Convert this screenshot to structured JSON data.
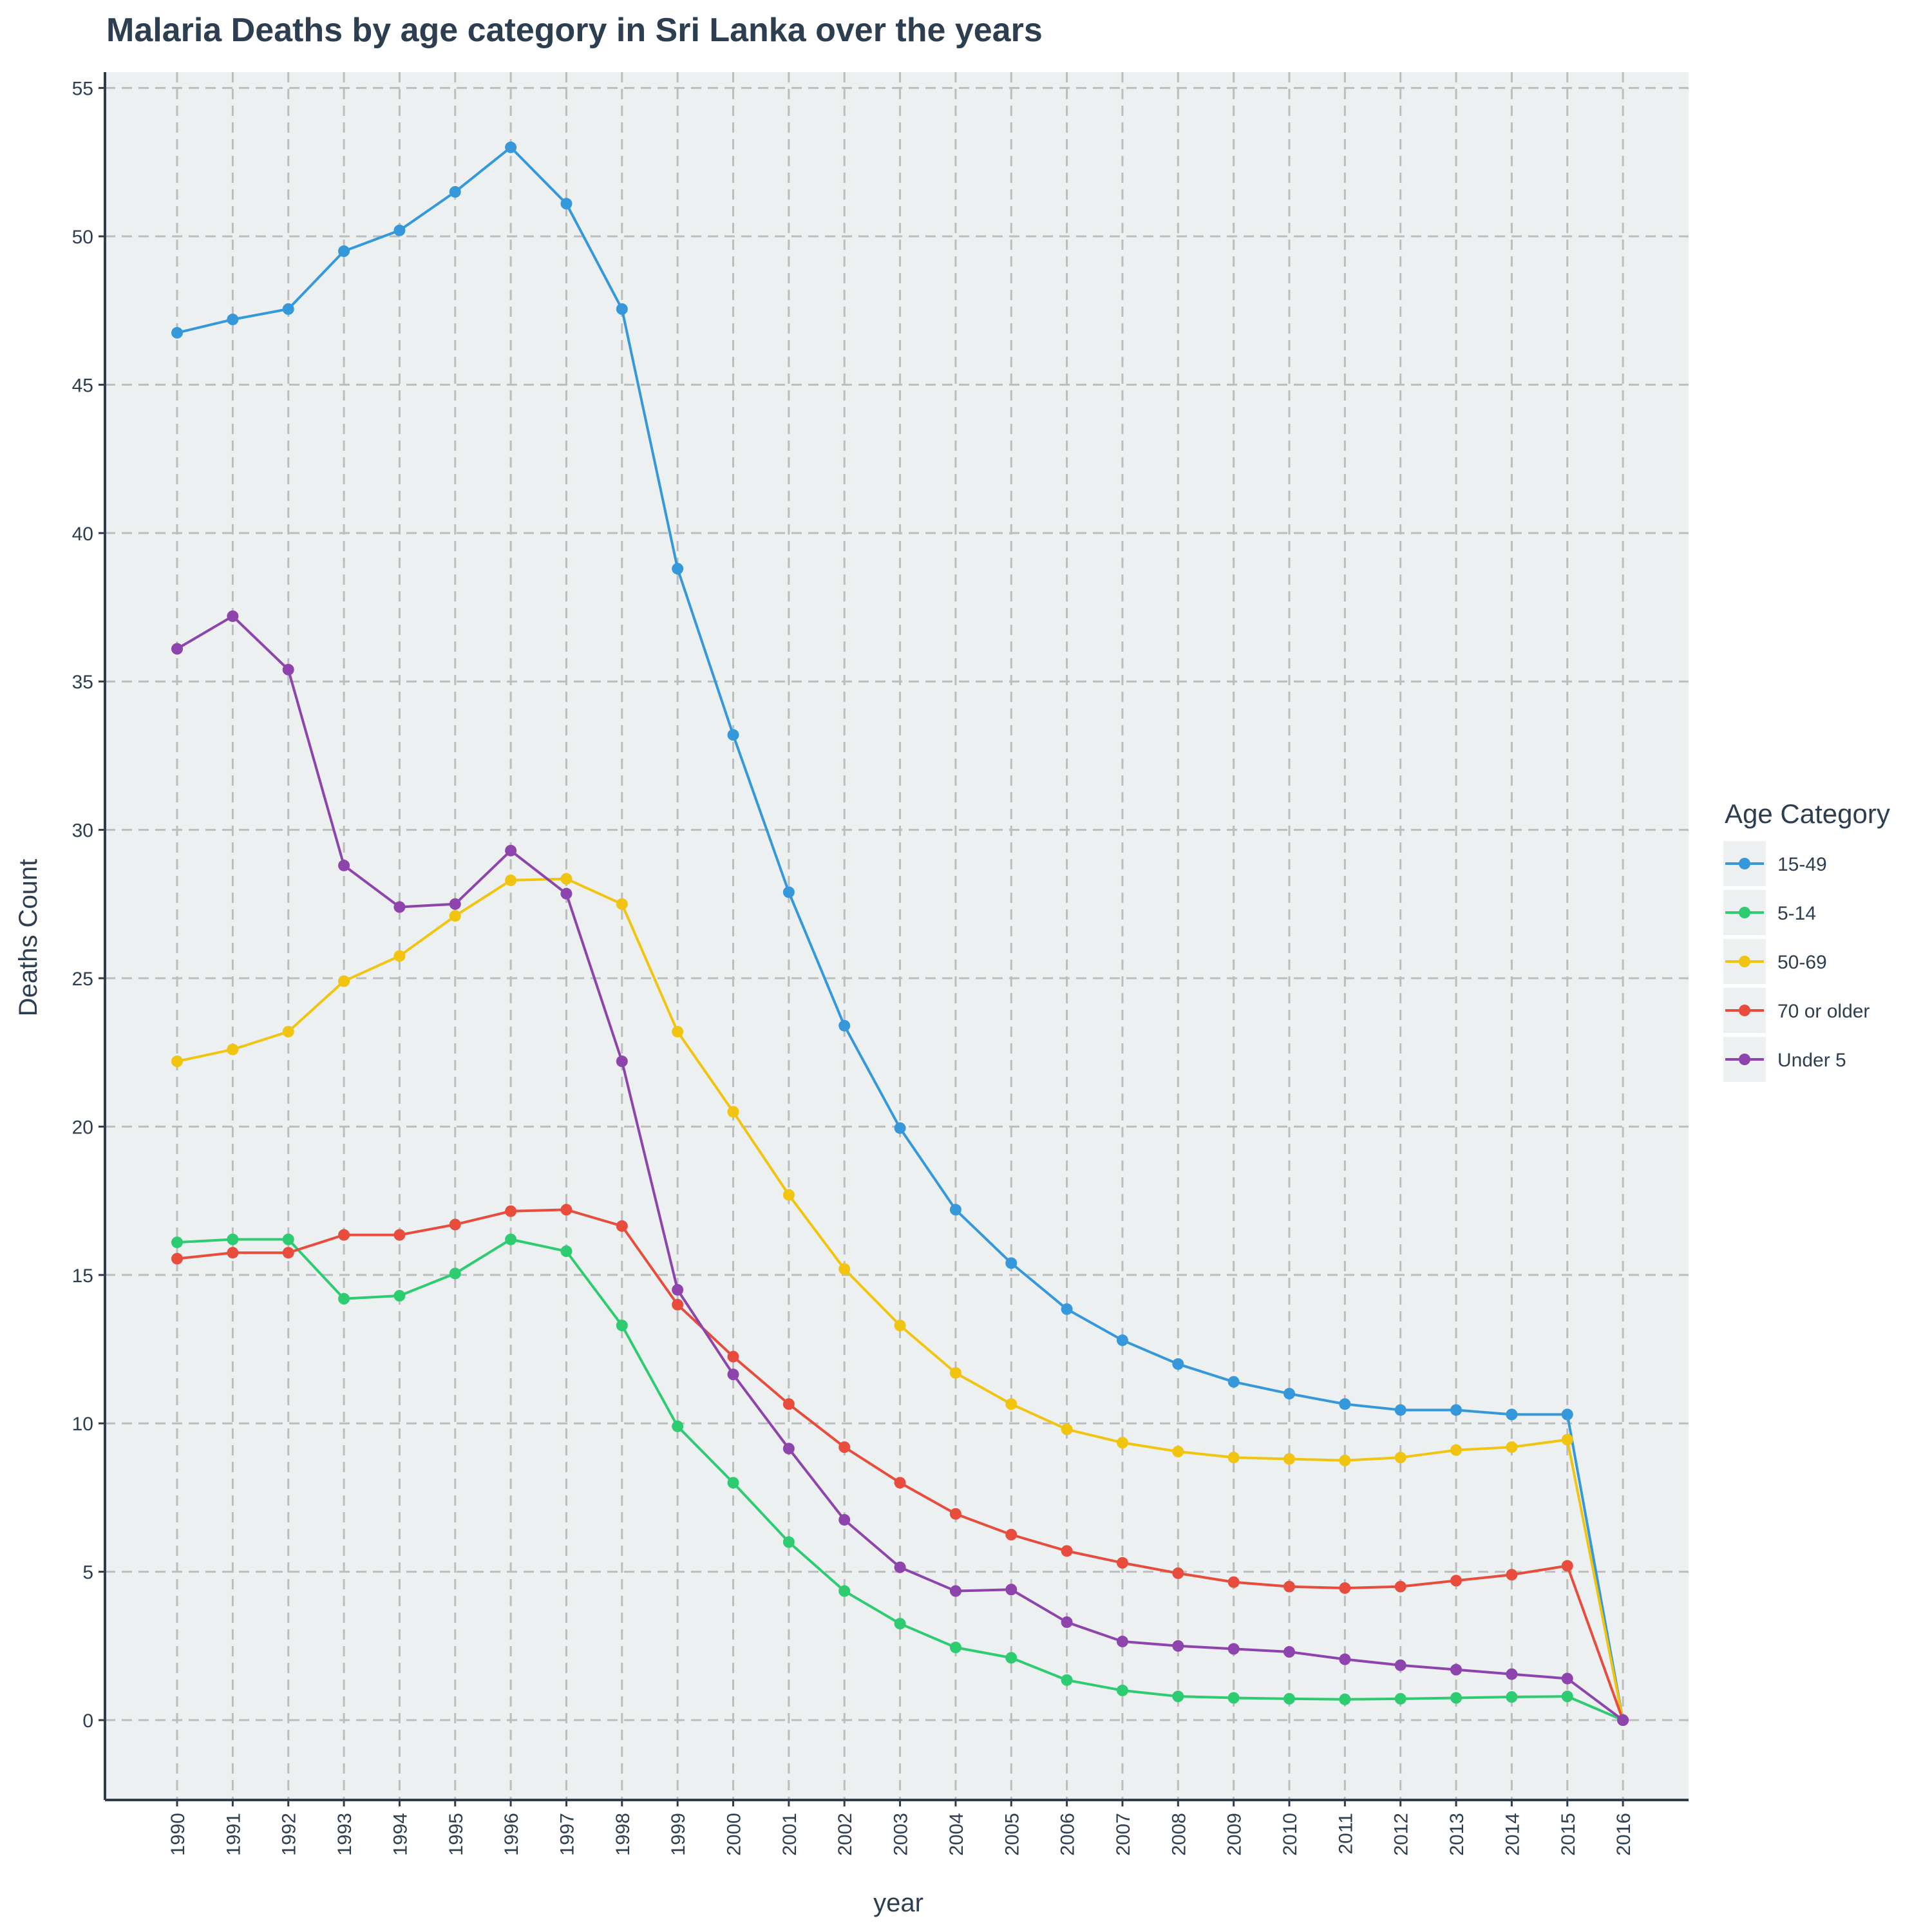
{
  "chart_data": {
    "type": "line",
    "title": "Malaria Deaths by age category in Sri Lanka over the years",
    "xlabel": "year",
    "ylabel": "Deaths Count",
    "ylim": [
      -2.7,
      55.5
    ],
    "yticks": [
      0,
      5,
      10,
      15,
      20,
      25,
      30,
      35,
      40,
      45,
      50,
      55
    ],
    "grid": true,
    "legend_title": "Age Category",
    "legend_position": "right",
    "x": [
      "1990",
      "1991",
      "1992",
      "1993",
      "1994",
      "1995",
      "1996",
      "1997",
      "1998",
      "1999",
      "2000",
      "2001",
      "2002",
      "2003",
      "2004",
      "2005",
      "2006",
      "2007",
      "2008",
      "2009",
      "2010",
      "2011",
      "2012",
      "2013",
      "2014",
      "2015",
      "2016"
    ],
    "series": [
      {
        "name": "15-49",
        "color": "#3498db",
        "values": [
          46.75,
          47.2,
          47.55,
          49.5,
          50.2,
          51.5,
          53.0,
          51.1,
          47.55,
          38.8,
          33.2,
          27.9,
          23.4,
          19.95,
          17.2,
          15.4,
          13.85,
          12.8,
          12.0,
          11.4,
          11.0,
          10.65,
          10.45,
          10.45,
          10.3,
          10.3,
          0
        ]
      },
      {
        "name": "5-14",
        "color": "#2ecc71",
        "values": [
          16.1,
          16.2,
          16.2,
          14.2,
          14.3,
          15.05,
          16.2,
          15.8,
          13.3,
          9.9,
          8.0,
          6.0,
          4.35,
          3.25,
          2.45,
          2.1,
          1.35,
          1.0,
          0.8,
          0.75,
          0.72,
          0.7,
          0.72,
          0.75,
          0.78,
          0.8,
          0
        ]
      },
      {
        "name": "50-69",
        "color": "#f1c40f",
        "values": [
          22.2,
          22.6,
          23.2,
          24.9,
          25.75,
          27.1,
          28.3,
          28.35,
          27.5,
          23.2,
          20.5,
          17.7,
          15.2,
          13.3,
          11.7,
          10.65,
          9.8,
          9.35,
          9.05,
          8.85,
          8.8,
          8.75,
          8.85,
          9.1,
          9.2,
          9.45,
          0
        ]
      },
      {
        "name": "70 or older",
        "color": "#e74c3c",
        "values": [
          15.55,
          15.75,
          15.75,
          16.35,
          16.35,
          16.7,
          17.15,
          17.2,
          16.65,
          14.0,
          12.25,
          10.65,
          9.2,
          8.0,
          6.95,
          6.25,
          5.7,
          5.3,
          4.95,
          4.65,
          4.5,
          4.45,
          4.5,
          4.7,
          4.9,
          5.2,
          0
        ]
      },
      {
        "name": "Under 5",
        "color": "#8e44ad",
        "values": [
          36.1,
          37.2,
          35.4,
          28.8,
          27.4,
          27.5,
          29.3,
          27.85,
          22.2,
          14.5,
          11.65,
          9.15,
          6.75,
          5.15,
          4.35,
          4.4,
          3.3,
          2.65,
          2.5,
          2.4,
          2.3,
          2.05,
          1.85,
          1.7,
          1.55,
          1.4,
          0
        ]
      }
    ]
  }
}
